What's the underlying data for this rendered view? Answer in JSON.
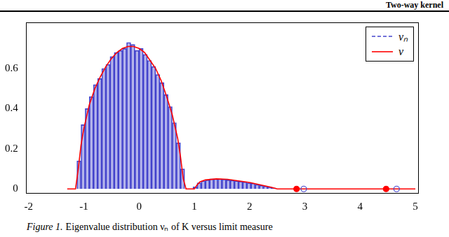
{
  "header": "Two-way kernel",
  "caption": {
    "label": "Figure 1.",
    "text": "Eigenvalue distribution νₙ of K versus limit measure"
  },
  "chart_data": {
    "type": "histogram",
    "xlim": [
      -2.05,
      5.05
    ],
    "ylim": [
      -0.02,
      0.83
    ],
    "xticks": [
      -2,
      -1,
      0,
      1,
      2,
      3,
      4,
      5
    ],
    "yticks": [
      0,
      0.2,
      0.4,
      0.6
    ],
    "grid": false,
    "legend": "upper right",
    "series": [
      {
        "name": "νₙ",
        "type": "histogram",
        "color": "#4444cc",
        "line_style": "dashed",
        "bins": [
          -1.125,
          -1.05,
          -0.975,
          -0.9,
          -0.825,
          -0.75,
          -0.675,
          -0.6,
          -0.525,
          -0.45,
          -0.375,
          -0.3,
          -0.225,
          -0.15,
          -0.075,
          0,
          0.075,
          0.15,
          0.225,
          0.3,
          0.375,
          0.45,
          0.525,
          0.6,
          0.675,
          0.75,
          0.825,
          0.9,
          0.975,
          1.05,
          1.125,
          1.2,
          1.275,
          1.35,
          1.425,
          1.5,
          1.575,
          1.65,
          1.725,
          1.8,
          1.875,
          1.95,
          2.025,
          2.1,
          2.175,
          2.25,
          2.325,
          2.4,
          2.475
        ],
        "values": [
          0.14,
          0.32,
          0.4,
          0.46,
          0.52,
          0.55,
          0.6,
          0.62,
          0.66,
          0.68,
          0.69,
          0.7,
          0.73,
          0.72,
          0.69,
          0.7,
          0.67,
          0.64,
          0.61,
          0.57,
          0.53,
          0.47,
          0.41,
          0.33,
          0.23,
          0.1,
          0,
          0,
          0.01,
          0.03,
          0.04,
          0.045,
          0.05,
          0.05,
          0.05,
          0.048,
          0.045,
          0.043,
          0.04,
          0.038,
          0.035,
          0.03,
          0.028,
          0.022,
          0.018,
          0.014,
          0.01,
          0.005
        ],
        "isolated": {
          "x": [
            2.98,
            4.66
          ],
          "values": [
            0,
            0
          ],
          "marker": "open_circle"
        }
      },
      {
        "name": "ν",
        "type": "line",
        "color": "#ff0000",
        "line_style": "solid",
        "x": [
          -1.3,
          -1.15,
          -1.1,
          -1.05,
          -1.0,
          -0.9,
          -0.8,
          -0.7,
          -0.6,
          -0.5,
          -0.4,
          -0.3,
          -0.2,
          -0.1,
          0,
          0.1,
          0.2,
          0.3,
          0.4,
          0.5,
          0.6,
          0.7,
          0.75,
          0.8,
          0.85,
          1.0,
          1.05,
          1.1,
          1.2,
          1.4,
          1.6,
          1.8,
          2.0,
          2.2,
          2.4,
          2.5,
          5.0
        ],
        "values": [
          0,
          0,
          0.1,
          0.22,
          0.3,
          0.42,
          0.5,
          0.56,
          0.61,
          0.65,
          0.68,
          0.7,
          0.71,
          0.71,
          0.7,
          0.68,
          0.64,
          0.6,
          0.54,
          0.46,
          0.37,
          0.25,
          0.16,
          0.05,
          0,
          0,
          0.02,
          0.035,
          0.045,
          0.05,
          0.048,
          0.04,
          0.032,
          0.02,
          0.008,
          0,
          0
        ],
        "isolated": {
          "x": [
            2.85,
            4.47
          ],
          "values": [
            0,
            0
          ],
          "marker": "filled_circle"
        }
      }
    ]
  }
}
